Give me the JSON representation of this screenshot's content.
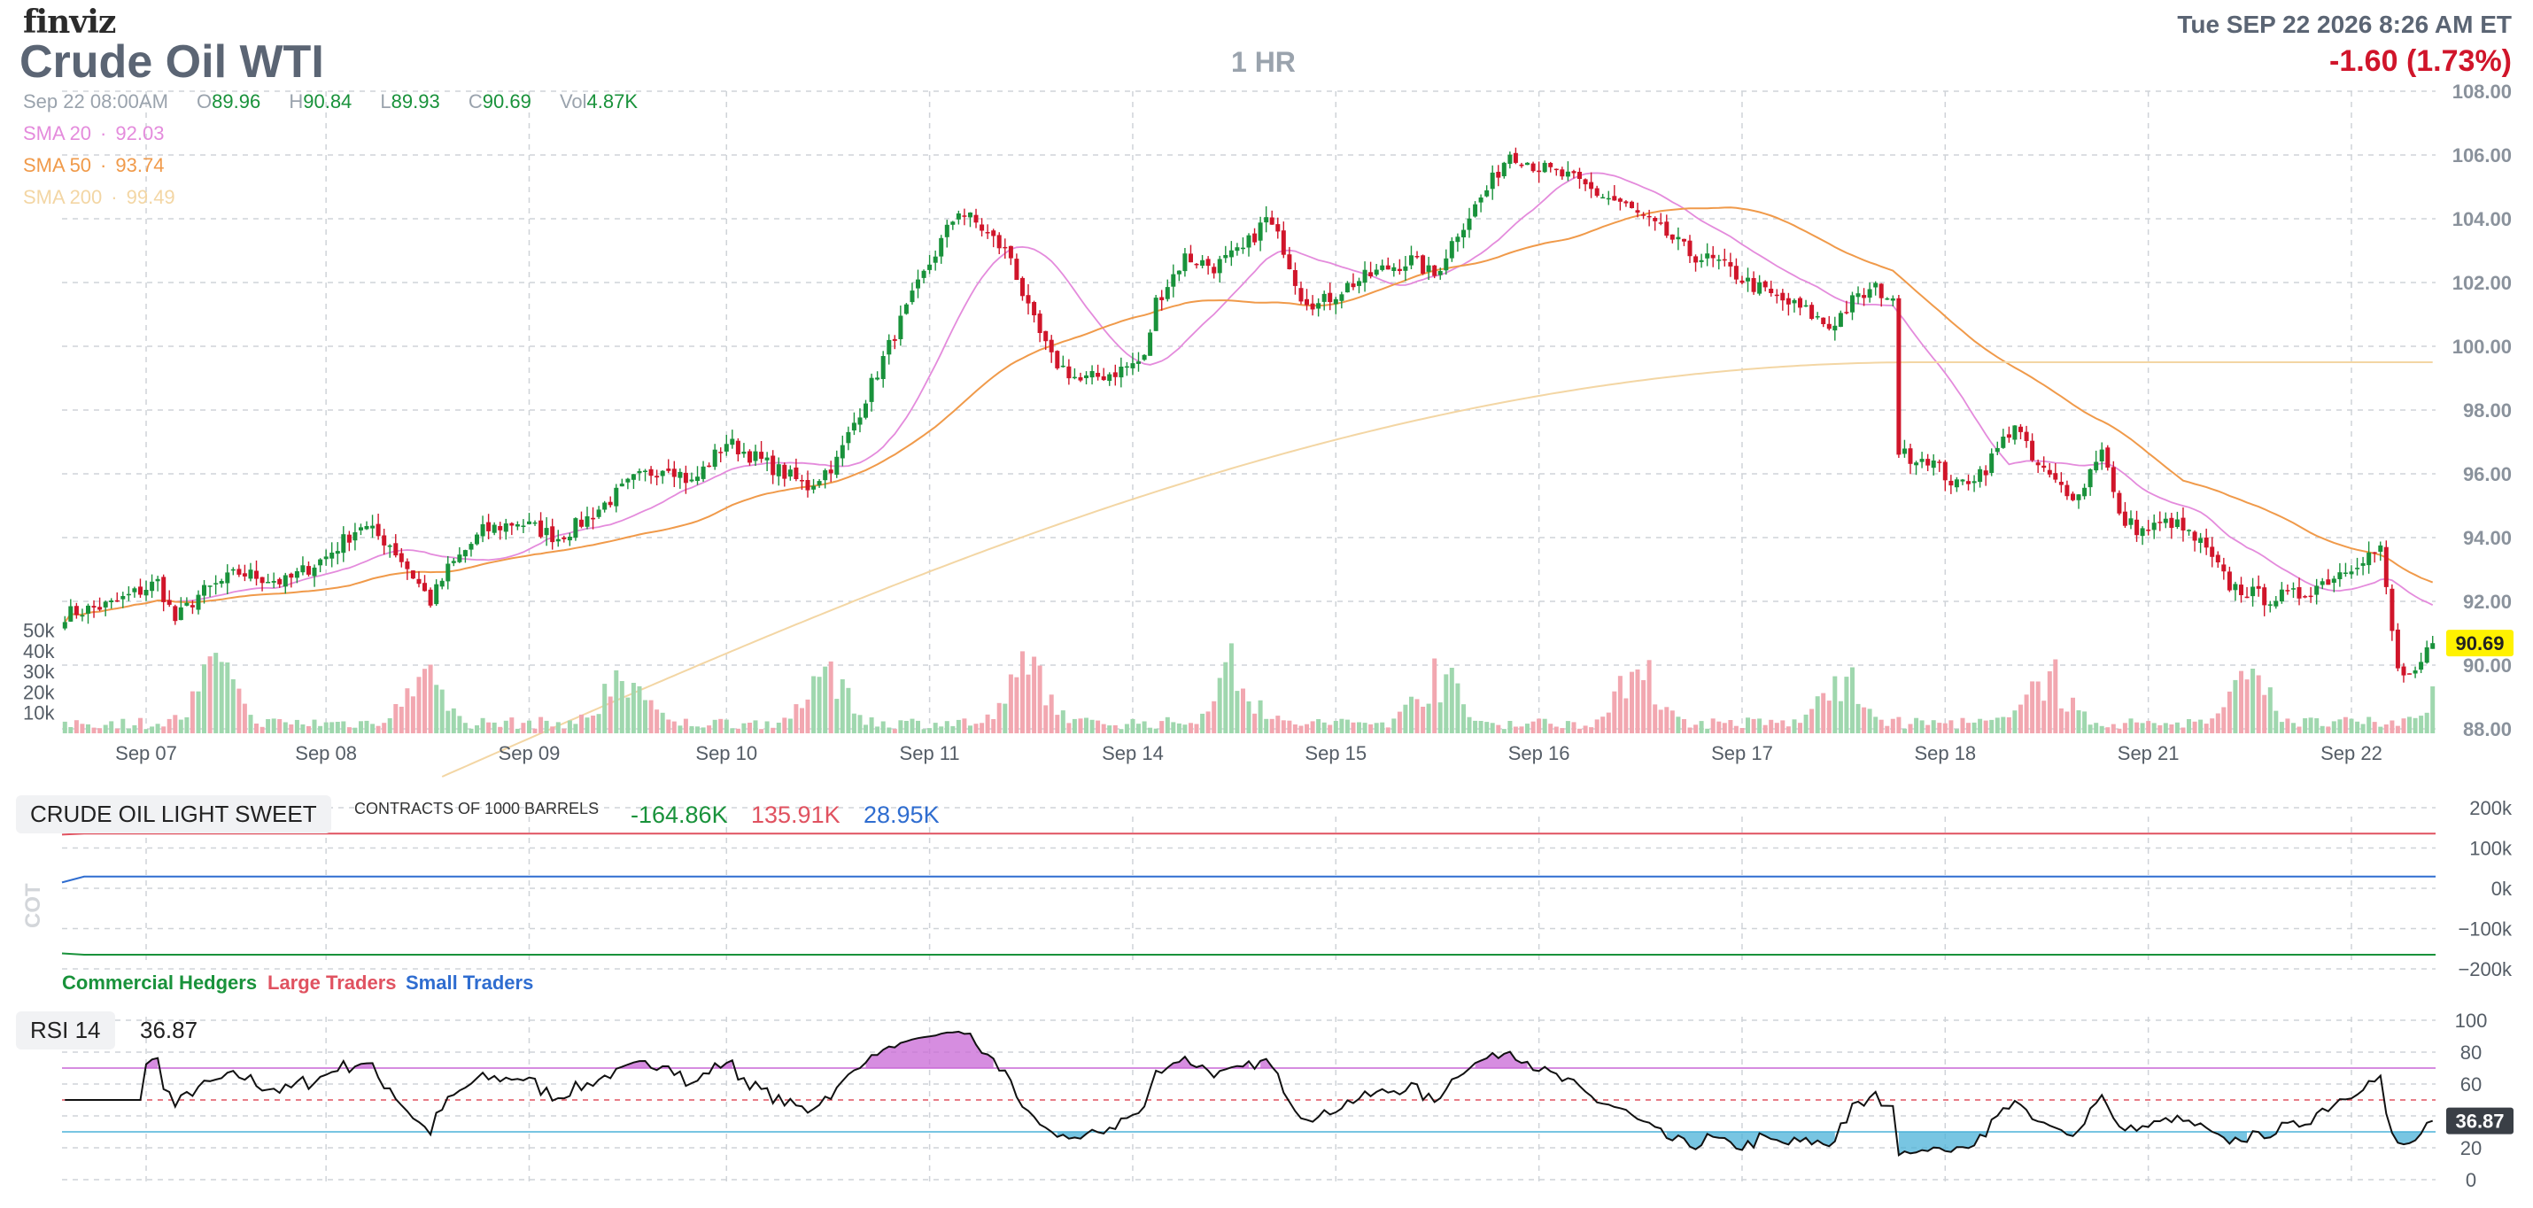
{
  "header": {
    "logo": "finviz",
    "title": "Crude Oil WTI",
    "interval": "1 HR",
    "datetime": "Tue SEP 22 2026 8:26 AM ET",
    "change": "-1.60 (1.73%)"
  },
  "ohlc": {
    "date": "Sep 22 08:00AM",
    "o_label": "O",
    "o": "89.96",
    "h_label": "H",
    "h": "90.84",
    "l_label": "L",
    "l": "89.93",
    "c_label": "C",
    "c": "90.69",
    "vol_label": "Vol",
    "vol": "4.87K"
  },
  "sma": [
    {
      "label": "SMA 20",
      "value": "92.03",
      "color": "#e48bdc"
    },
    {
      "label": "SMA 50",
      "value": "93.74",
      "color": "#f09a4a"
    },
    {
      "label": "SMA 200",
      "value": "99.49",
      "color": "#f3d6a4"
    }
  ],
  "cot": {
    "name": "CRUDE OIL LIGHT SWEET",
    "units": "CONTRACTS OF 1000 BARRELS",
    "commercial_value": "-164.86K",
    "large_value": "135.91K",
    "small_value": "28.95K",
    "axis_title": "COT",
    "legend_commercial": "Commercial Hedgers",
    "legend_large": "Large Traders",
    "legend_small": "Small Traders"
  },
  "rsi": {
    "label": "RSI 14",
    "value": "36.87"
  },
  "colors": {
    "up": "#19923b",
    "down": "#d0152a",
    "vol_up": "#9fd7ae",
    "vol_down": "#f2a7b0",
    "commercial": "#19923b",
    "large": "#e05260",
    "small": "#2f6dd0",
    "rsi_over": "#c867d5",
    "rsi_under": "#4bb2d8",
    "price_badge": "#fff200"
  },
  "chart_data": [
    {
      "type": "candlestick",
      "title": "Crude Oil WTI",
      "interval": "1 HR",
      "y_ticks": [
        "108.00",
        "106.00",
        "104.00",
        "102.00",
        "100.00",
        "98.00",
        "96.00",
        "94.00",
        "92.00",
        "90.00",
        "88.00"
      ],
      "ylim": [
        88,
        108
      ],
      "x_ticks": [
        "Sep 07",
        "Sep 08",
        "Sep 09",
        "Sep 10",
        "Sep 11",
        "Sep 14",
        "Sep 15",
        "Sep 16",
        "Sep 17",
        "Sep 18",
        "Sep 21",
        "Sep 22"
      ],
      "volume_ticks": [
        "50k",
        "40k",
        "30k",
        "20k",
        "10k"
      ],
      "last_price": "90.69",
      "close_path": [
        [
          0,
          91.6
        ],
        [
          8,
          91.9
        ],
        [
          16,
          92.6
        ],
        [
          19,
          91.4
        ],
        [
          23,
          92.2
        ],
        [
          30,
          92.9
        ],
        [
          38,
          92.6
        ],
        [
          45,
          93.4
        ],
        [
          51,
          94.4
        ],
        [
          56,
          93.8
        ],
        [
          60,
          92.8
        ],
        [
          63,
          92.0
        ],
        [
          66,
          93.0
        ],
        [
          72,
          94.2
        ],
        [
          78,
          94.5
        ],
        [
          85,
          94.0
        ],
        [
          90,
          94.6
        ],
        [
          98,
          95.8
        ],
        [
          104,
          96.3
        ],
        [
          108,
          95.7
        ],
        [
          114,
          97.0
        ],
        [
          118,
          96.6
        ],
        [
          124,
          96.0
        ],
        [
          128,
          95.6
        ],
        [
          133,
          96.4
        ],
        [
          138,
          98.4
        ],
        [
          143,
          100.4
        ],
        [
          149,
          102.6
        ],
        [
          154,
          104.3
        ],
        [
          158,
          103.7
        ],
        [
          163,
          102.8
        ],
        [
          166,
          101.1
        ],
        [
          170,
          99.6
        ],
        [
          175,
          98.9
        ],
        [
          181,
          99.2
        ],
        [
          186,
          99.6
        ],
        [
          188,
          101.4
        ],
        [
          193,
          102.8
        ],
        [
          198,
          102.5
        ],
        [
          203,
          103.0
        ],
        [
          207,
          104.0
        ],
        [
          210,
          103.1
        ],
        [
          213,
          101.6
        ],
        [
          216,
          101.3
        ],
        [
          221,
          101.9
        ],
        [
          227,
          102.4
        ],
        [
          232,
          102.7
        ],
        [
          236,
          102.2
        ],
        [
          240,
          103.6
        ],
        [
          245,
          104.9
        ],
        [
          249,
          106.1
        ],
        [
          254,
          105.6
        ],
        [
          259,
          105.3
        ],
        [
          264,
          104.8
        ],
        [
          268,
          104.5
        ],
        [
          272,
          104.0
        ],
        [
          276,
          103.5
        ],
        [
          280,
          102.9
        ],
        [
          285,
          102.6
        ],
        [
          290,
          102.0
        ],
        [
          295,
          101.5
        ],
        [
          300,
          101.1
        ],
        [
          304,
          100.6
        ],
        [
          308,
          101.4
        ],
        [
          312,
          101.8
        ],
        [
          315,
          101.5
        ],
        [
          316,
          96.6
        ],
        [
          321,
          96.5
        ],
        [
          326,
          95.6
        ],
        [
          331,
          96.2
        ],
        [
          336,
          97.6
        ],
        [
          339,
          96.4
        ],
        [
          343,
          95.7
        ],
        [
          347,
          95.3
        ],
        [
          351,
          96.9
        ],
        [
          354,
          94.6
        ],
        [
          358,
          94.2
        ],
        [
          363,
          94.5
        ],
        [
          368,
          93.8
        ],
        [
          373,
          92.5
        ],
        [
          379,
          92.1
        ],
        [
          385,
          92.2
        ],
        [
          391,
          92.8
        ],
        [
          396,
          93.4
        ],
        [
          399,
          93.6
        ],
        [
          402,
          89.8
        ],
        [
          405,
          89.6
        ],
        [
          408,
          90.69
        ]
      ]
    },
    {
      "type": "line",
      "title": "COT",
      "y_ticks": [
        "200k",
        "100k",
        "0k",
        "−100k",
        "−200k"
      ],
      "ylim": [
        -200000,
        200000
      ],
      "series": [
        {
          "name": "Commercial Hedgers",
          "last": -164860
        },
        {
          "name": "Large Traders",
          "last": 135910
        },
        {
          "name": "Small Traders",
          "last": 28950
        }
      ]
    },
    {
      "type": "line",
      "title": "RSI 14",
      "y_ticks": [
        "100",
        "80",
        "60",
        "40",
        "20",
        "0"
      ],
      "ylim": [
        0,
        100
      ],
      "levels": [
        70,
        50,
        30
      ],
      "last": 36.87
    }
  ]
}
